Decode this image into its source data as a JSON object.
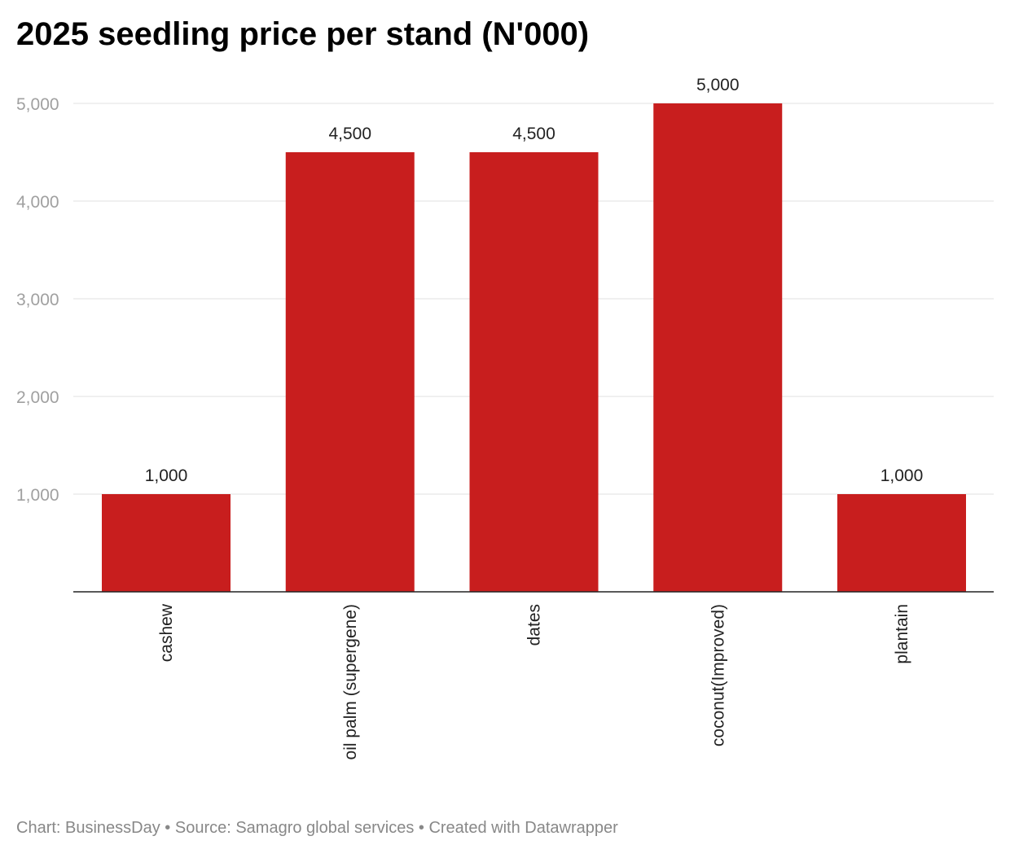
{
  "chart_data": {
    "type": "bar",
    "title": "2025 seedling price per stand (N'000)",
    "categories": [
      "cashew",
      "oil palm (supergene)",
      "dates",
      "coconut(Improved)",
      "plantain"
    ],
    "values": [
      1000,
      4500,
      4500,
      5000,
      1000
    ],
    "value_labels": [
      "1,000",
      "4,500",
      "4,500",
      "5,000",
      "1,000"
    ],
    "xlabel": "",
    "ylabel": "",
    "ylim": [
      0,
      5000
    ],
    "yticks": [
      1000,
      2000,
      3000,
      4000,
      5000
    ],
    "ytick_labels": [
      "1,000",
      "2,000",
      "3,000",
      "4,000",
      "5,000"
    ],
    "grid": true,
    "bar_color": "#c81e1e"
  },
  "footer": {
    "text": "Chart: BusinessDay • Source: Samagro global services • Created with Datawrapper"
  }
}
